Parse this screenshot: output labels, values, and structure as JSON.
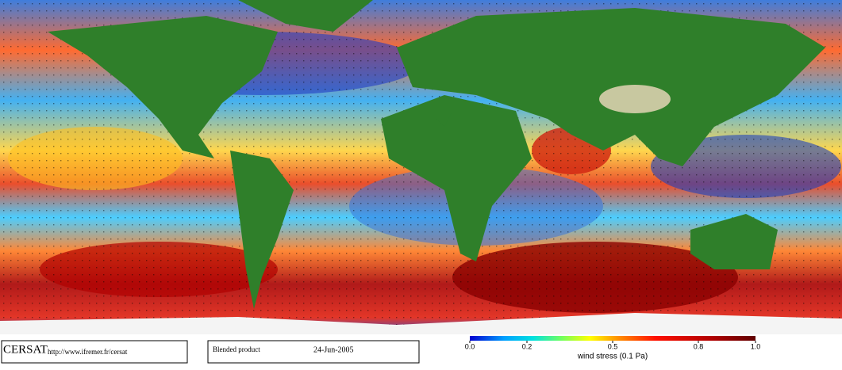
{
  "footer": {
    "logo": "CERSAT",
    "url": "http://www.ifremer.fr/cersat",
    "product": "Blended product",
    "date": "24-Jun-2005"
  },
  "colorbar": {
    "lim": [
      0,
      1
    ],
    "ticks": [
      {
        "value": 0,
        "label": "0.0"
      },
      {
        "value": 0.2,
        "label": "0.2"
      },
      {
        "value": 0.5,
        "label": "0.5"
      },
      {
        "value": 0.8,
        "label": "0.8"
      },
      {
        "value": 1,
        "label": "1.0"
      }
    ],
    "label": "wind stress (0.1 Pa)"
  }
}
